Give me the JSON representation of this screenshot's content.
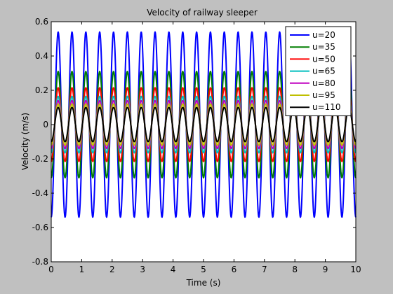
{
  "chart_data": {
    "type": "line",
    "title": "Velocity of railway sleeper",
    "xlabel": "Time (s)",
    "ylabel": "Velocity (m/s)",
    "xlim": [
      0,
      10
    ],
    "ylim": [
      -0.8,
      0.6
    ],
    "xticks": [
      "0",
      "1",
      "2",
      "3",
      "4",
      "5",
      "6",
      "7",
      "8",
      "9",
      "10"
    ],
    "yticks": [
      "0.6",
      "0.4",
      "0.2",
      "0",
      "-0.2",
      "-0.4",
      "-0.6",
      "-0.8"
    ],
    "grid": false,
    "legend_position": "top-right",
    "waveform": {
      "frequency_hz": 2.2,
      "sample_step_s": 0.01
    },
    "series": [
      {
        "name": "u=20",
        "color": "#0000ff",
        "amplitude": 0.54
      },
      {
        "name": "u=35",
        "color": "#007f00",
        "amplitude": 0.31
      },
      {
        "name": "u=50",
        "color": "#ff0000",
        "amplitude": 0.215
      },
      {
        "name": "u=65",
        "color": "#00bfbf",
        "amplitude": 0.165
      },
      {
        "name": "u=80",
        "color": "#bf00bf",
        "amplitude": 0.14
      },
      {
        "name": "u=95",
        "color": "#bfbf00",
        "amplitude": 0.12
      },
      {
        "name": "u=110",
        "color": "#000000",
        "amplitude": 0.1
      }
    ]
  }
}
